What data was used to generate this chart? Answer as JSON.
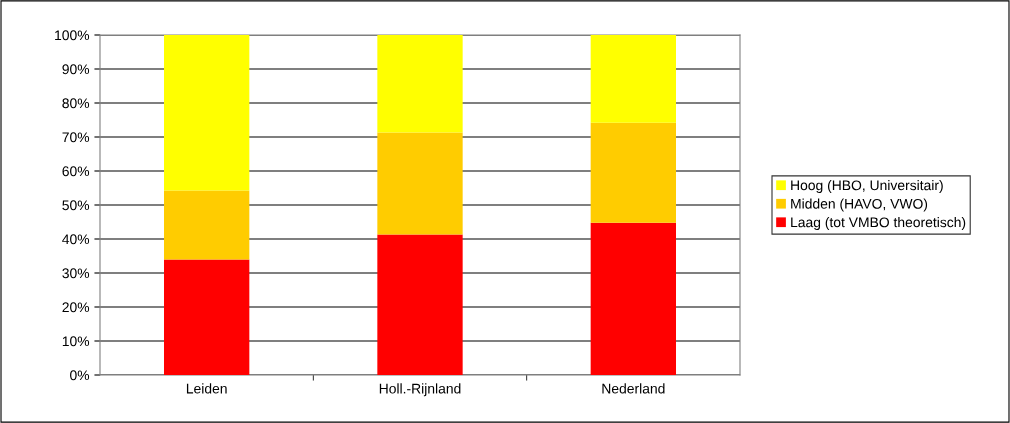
{
  "chart_data": {
    "type": "bar",
    "stacked": true,
    "categories": [
      "Leiden",
      "Holl.-Rijnland",
      "Nederland"
    ],
    "series": [
      {
        "name": "Laag (tot VMBO theoretisch)",
        "color": "#ff0000",
        "values": [
          34.0,
          41.3,
          44.8
        ]
      },
      {
        "name": "Midden (HAVO, VWO)",
        "color": "#ffcc00",
        "values": [
          20.3,
          30.0,
          29.4
        ]
      },
      {
        "name": "Hoog (HBO, Universitair)",
        "color": "#ffff00",
        "values": [
          45.7,
          28.7,
          25.8
        ]
      }
    ],
    "ylim": [
      0,
      100
    ],
    "yticks": [
      {
        "value": 0,
        "label": "0%"
      },
      {
        "value": 10,
        "label": "10%"
      },
      {
        "value": 20,
        "label": "20%"
      },
      {
        "value": 30,
        "label": "30%"
      },
      {
        "value": 40,
        "label": "40%"
      },
      {
        "value": 50,
        "label": "50%"
      },
      {
        "value": 60,
        "label": "60%"
      },
      {
        "value": 70,
        "label": "70%"
      },
      {
        "value": 80,
        "label": "80%"
      },
      {
        "value": 90,
        "label": "90%"
      },
      {
        "value": 100,
        "label": "100%"
      }
    ],
    "grid": "y",
    "legend": "right"
  }
}
